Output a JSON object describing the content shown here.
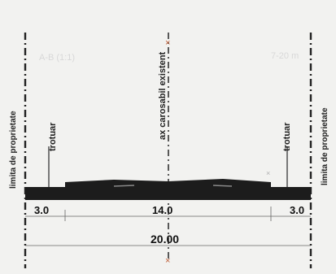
{
  "labels": {
    "property_limit_left": "limita de proprietate",
    "property_limit_right": "limita de proprietate",
    "sidewalk_left": "trotuar",
    "sidewalk_right": "trotuar",
    "road_axis": "ax carosabil existent"
  },
  "faint_labels": {
    "left": "A-B (1:1)",
    "right": "7-20 m"
  },
  "dimensions": {
    "sidewalk_left": "3.0",
    "carriageway": "14.0",
    "sidewalk_right": "3.0",
    "total": "20.00"
  },
  "colors": {
    "background": "#f2f2f0",
    "road": "#1c1c1c",
    "line": "#222222",
    "axis_accent": "#c0603a"
  }
}
